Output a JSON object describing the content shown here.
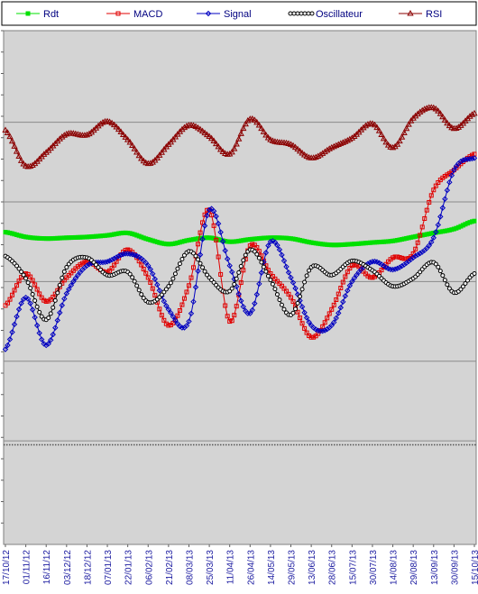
{
  "chart_data": {
    "type": "line",
    "title": "",
    "xlabel": "",
    "ylabel": "",
    "grid": true,
    "legend_position": "top",
    "background_color": "#d4d4d4",
    "categories": [
      "17/10/12",
      "01/11/12",
      "16/11/12",
      "03/12/12",
      "18/12/12",
      "07/01/13",
      "22/01/13",
      "06/02/13",
      "21/02/13",
      "08/03/13",
      "25/03/13",
      "11/04/13",
      "26/04/13",
      "14/05/13",
      "29/05/13",
      "13/06/13",
      "28/06/13",
      "15/07/13",
      "30/07/13",
      "14/08/13",
      "29/08/13",
      "13/09/13",
      "30/09/13",
      "15/10/13"
    ],
    "series": [
      {
        "name": "Rdt",
        "color": "#00e000",
        "marker": "square",
        "values": [
          0.62,
          0.56,
          0.54,
          0.55,
          0.56,
          0.58,
          0.61,
          0.53,
          0.47,
          0.52,
          0.55,
          0.5,
          0.53,
          0.55,
          0.54,
          0.49,
          0.46,
          0.47,
          0.49,
          0.51,
          0.56,
          0.61,
          0.66,
          0.76
        ]
      },
      {
        "name": "MACD",
        "color": "#e00000",
        "marker": "square",
        "values": [
          -0.3,
          0.1,
          -0.25,
          0.05,
          0.25,
          0.12,
          0.4,
          0.05,
          -0.55,
          -0.05,
          0.9,
          -0.5,
          0.45,
          0.1,
          -0.2,
          -0.7,
          -0.35,
          0.2,
          0.05,
          0.3,
          0.35,
          1.15,
          1.4,
          1.6
        ]
      },
      {
        "name": "Signal",
        "color": "#0000c0",
        "marker": "diamond",
        "values": [
          -0.85,
          -0.2,
          -0.8,
          -0.15,
          0.2,
          0.25,
          0.35,
          0.2,
          -0.35,
          -0.5,
          0.9,
          0.2,
          -0.4,
          0.5,
          0.05,
          -0.55,
          -0.55,
          0.0,
          0.25,
          0.15,
          0.3,
          0.55,
          1.4,
          1.55
        ]
      },
      {
        "name": "Oscillateur",
        "color": "#000000",
        "marker": "circle",
        "values": [
          0.32,
          0.04,
          -0.48,
          0.18,
          0.3,
          0.08,
          0.12,
          -0.26,
          -0.06,
          0.38,
          0.05,
          -0.12,
          0.4,
          0.02,
          -0.42,
          0.18,
          0.08,
          0.26,
          0.14,
          -0.06,
          0.04,
          0.24,
          -0.14,
          0.1
        ]
      },
      {
        "name": "RSI",
        "color": "#8b0000",
        "marker": "triangle",
        "values": [
          1.9,
          1.45,
          1.62,
          1.85,
          1.84,
          2.01,
          1.78,
          1.48,
          1.72,
          1.96,
          1.82,
          1.6,
          2.04,
          1.78,
          1.72,
          1.55,
          1.68,
          1.8,
          1.98,
          1.68,
          2.05,
          2.18,
          1.92,
          2.11
        ]
      }
    ],
    "ylim": [
      -3.3,
      3.15
    ],
    "gridlines_y": [
      2.0,
      1.0,
      0.0,
      -1.0,
      -2.0
    ],
    "dotted_line_y": -2.05
  }
}
